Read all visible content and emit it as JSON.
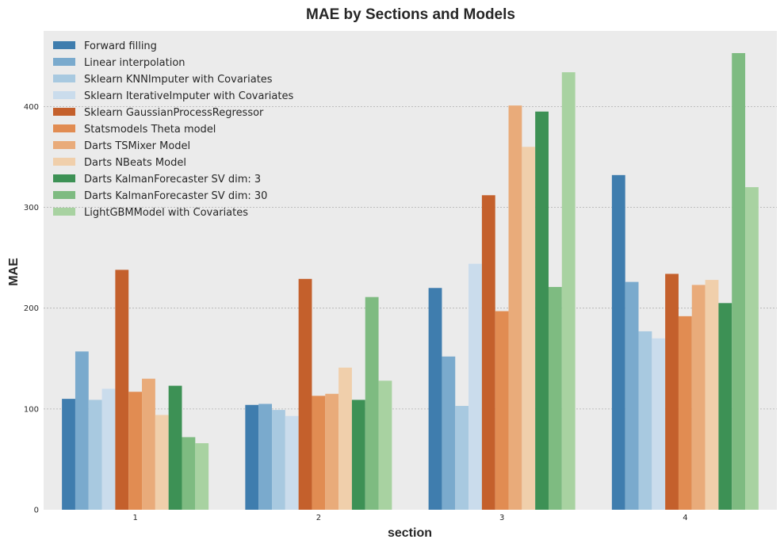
{
  "chart_data": {
    "type": "bar",
    "title": "MAE by Sections and Models",
    "xlabel": "section",
    "ylabel": "MAE",
    "categories": [
      "1",
      "2",
      "3",
      "4"
    ],
    "ylim": [
      0,
      475
    ],
    "yticks": [
      0,
      100,
      200,
      300,
      400
    ],
    "grid": true,
    "legend_position": "top-left",
    "background": "#ebebeb",
    "series": [
      {
        "name": "Forward filling",
        "color": "#3f7dae",
        "values": [
          110,
          104,
          220,
          332
        ]
      },
      {
        "name": "Linear interpolation",
        "color": "#7aaacd",
        "values": [
          157,
          105,
          152,
          226
        ]
      },
      {
        "name": "Sklearn KNNImputer with Covariates",
        "color": "#a8c9e0",
        "values": [
          109,
          99,
          103,
          177
        ]
      },
      {
        "name": "Sklearn IterativeImputer with Covariates",
        "color": "#cadcec",
        "values": [
          120,
          93,
          244,
          170
        ]
      },
      {
        "name": "Sklearn GaussianProcessRegressor",
        "color": "#c4602c",
        "values": [
          238,
          229,
          312,
          234
        ]
      },
      {
        "name": "Statsmodels Theta model",
        "color": "#e18c52",
        "values": [
          117,
          113,
          197,
          192
        ]
      },
      {
        "name": "Darts TSMixer Model",
        "color": "#e9ab7a",
        "values": [
          130,
          115,
          401,
          223
        ]
      },
      {
        "name": "Darts NBeats Model",
        "color": "#f0cfab",
        "values": [
          94,
          141,
          360,
          228
        ]
      },
      {
        "name": "Darts KalmanForecaster SV dim: 3",
        "color": "#3d9155",
        "values": [
          123,
          109,
          395,
          205
        ]
      },
      {
        "name": "Darts KalmanForecaster SV dim: 30",
        "color": "#7ebb81",
        "values": [
          72,
          211,
          221,
          453
        ]
      },
      {
        "name": "LightGBMModel with Covariates",
        "color": "#a8d2a1",
        "values": [
          66,
          128,
          434,
          320
        ]
      }
    ]
  }
}
